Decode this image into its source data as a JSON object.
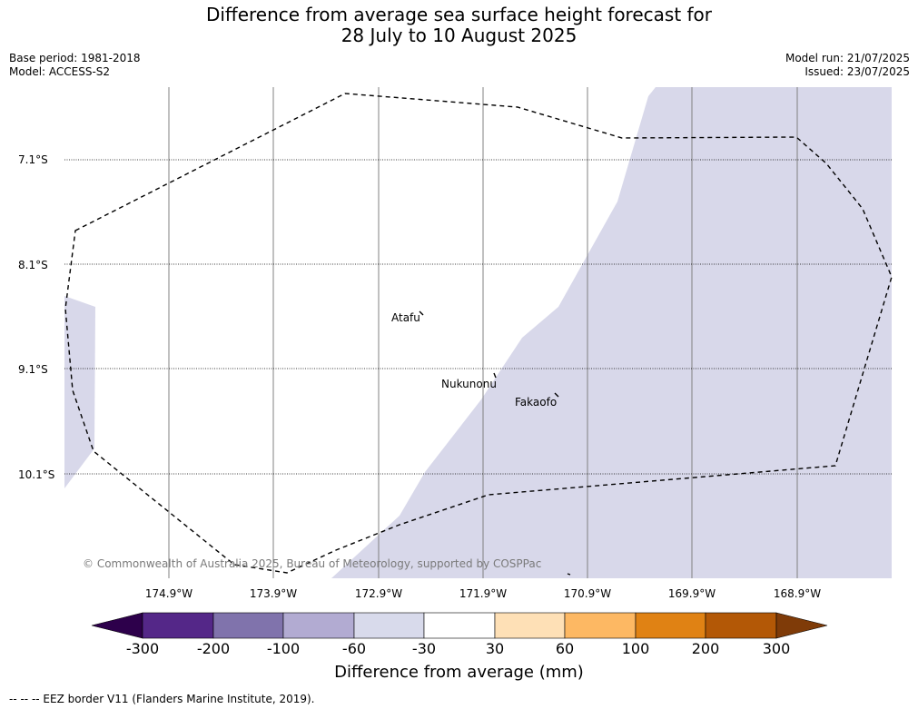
{
  "header": {
    "title_line1": "Difference from average sea surface height forecast for",
    "title_line2": "28 July to 10 August 2025",
    "base_period": "Base period: 1981-2018",
    "model": "Model: ACCESS-S2",
    "model_run": "Model run: 21/07/2025",
    "issued": "Issued: 23/07/2025"
  },
  "map": {
    "lat_labels": [
      "7.1°S",
      "8.1°S",
      "9.1°S",
      "10.1°S"
    ],
    "lon_labels": [
      "174.9°W",
      "173.9°W",
      "172.9°W",
      "171.9°W",
      "170.9°W",
      "169.9°W",
      "168.9°W"
    ],
    "places": [
      "Atafu",
      "Nukunonu",
      "Fakaofo"
    ],
    "copyright": "© Commonwealth of Australia 2025, Bureau of Meteorology, supported by COSPPac",
    "colors": {
      "anomaly_fill": "#d8d8ea",
      "gridline": "#808080",
      "eez_border": "#000000"
    }
  },
  "colorbar": {
    "label": "Difference from average (mm)",
    "ticks": [
      "-300",
      "-200",
      "-100",
      "-60",
      "-30",
      "30",
      "60",
      "100",
      "200",
      "300"
    ],
    "colors": [
      "#2d004b",
      "#542788",
      "#8073ac",
      "#b2abd2",
      "#d8daeb",
      "#ffffff",
      "#fee0b6",
      "#fdb863",
      "#e08214",
      "#b35806",
      "#7f3b08"
    ]
  },
  "footer": {
    "legend": "--  --  -- EEZ border V11 (Flanders Marine Institute, 2019)."
  }
}
